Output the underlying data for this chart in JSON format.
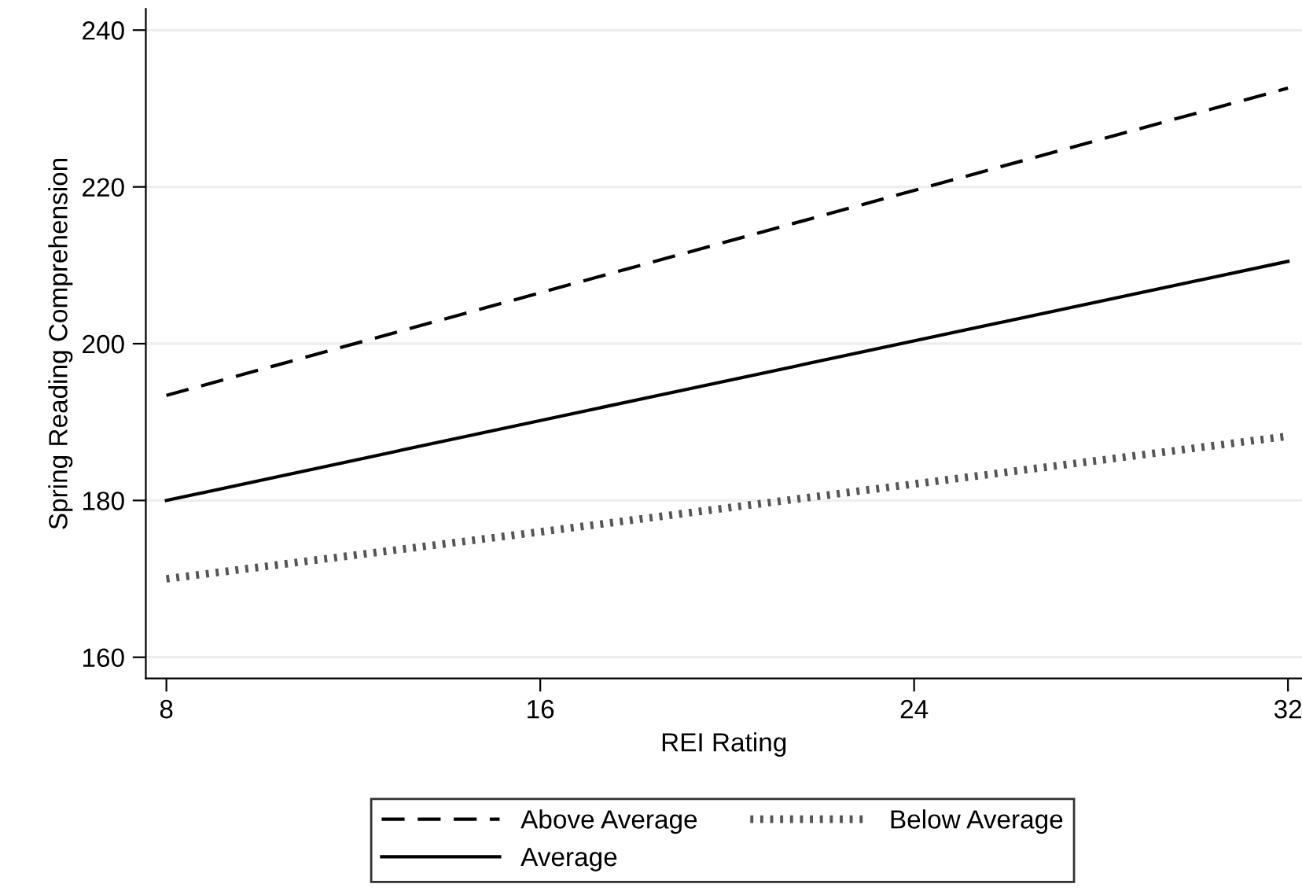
{
  "chart_data": {
    "type": "line",
    "xlabel": "REI Rating",
    "ylabel": "Spring Reading Comprehension",
    "x": [
      8,
      16,
      32
    ],
    "series": [
      {
        "name": "Above Average",
        "color": "#000000",
        "line_style": "dashed",
        "values": [
          193.4,
          206.5,
          232.6
        ]
      },
      {
        "name": "Below Average",
        "color": "#555555",
        "line_style": "dotted",
        "values": [
          170,
          176,
          188.2
        ]
      },
      {
        "name": "Average",
        "color": "#000000",
        "line_style": "solid",
        "values": [
          180,
          190.2,
          210.5
        ]
      }
    ],
    "xlim": [
      7.56,
      32.3
    ],
    "xticks": [
      8,
      16,
      24,
      32
    ],
    "ylim": [
      157.3,
      242.7
    ],
    "yticks": [
      160,
      180,
      200,
      220,
      240
    ],
    "grid": "y",
    "legend": "bottom",
    "marker": "none"
  }
}
